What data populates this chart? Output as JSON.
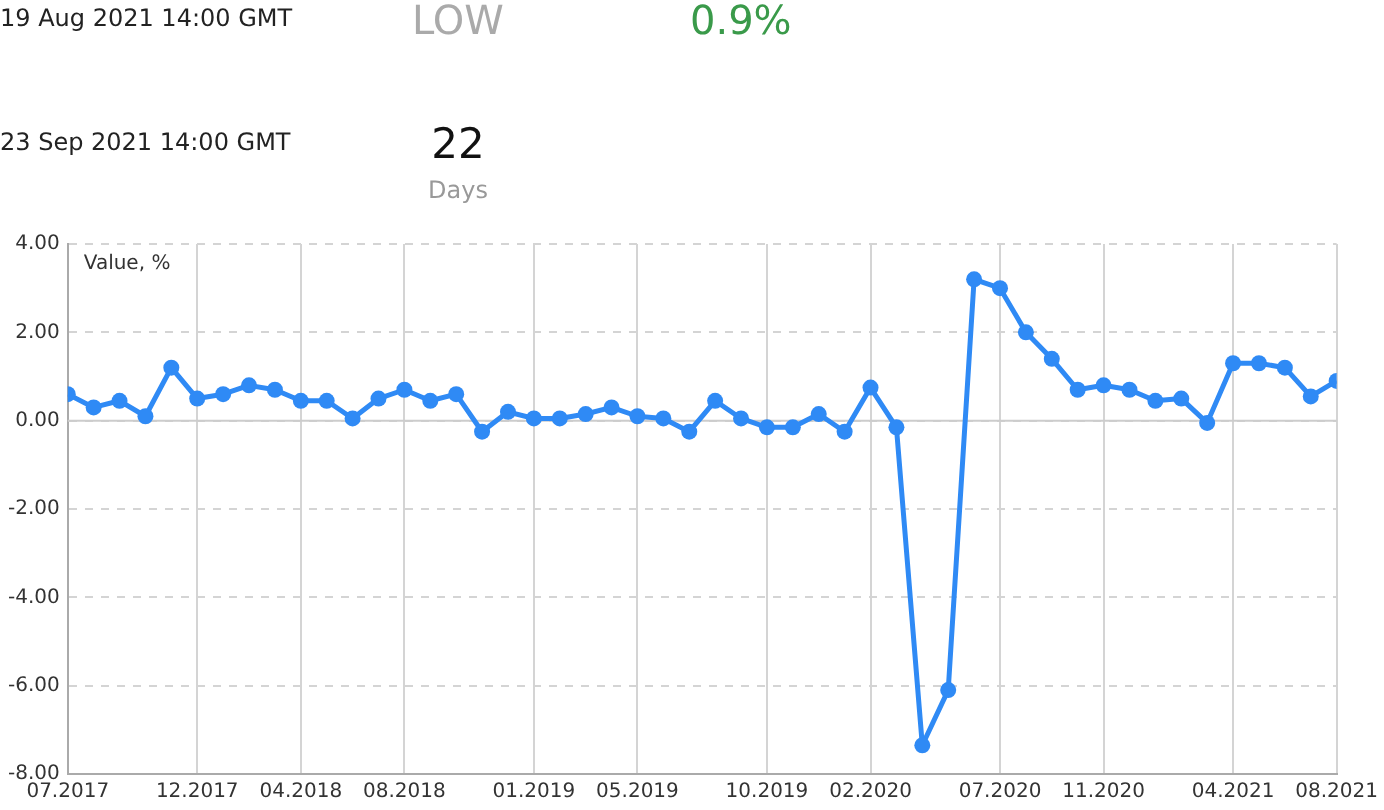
{
  "chart_data": {
    "type": "line",
    "ylabel": "Value, %",
    "annotations": [
      "19 Aug 2021 14:00 GMT",
      "LOW",
      "0.9%",
      "23 Sep 2021 14:00 GMT",
      "22",
      "Days"
    ],
    "x": [
      "2017-07",
      "2017-08",
      "2017-09",
      "2017-10",
      "2017-11",
      "2017-12",
      "2018-01",
      "2018-02",
      "2018-03",
      "2018-04",
      "2018-05",
      "2018-06",
      "2018-07",
      "2018-08",
      "2018-09",
      "2018-10",
      "2018-11",
      "2018-12",
      "2019-01",
      "2019-02",
      "2019-03",
      "2019-04",
      "2019-05",
      "2019-06",
      "2019-07",
      "2019-08",
      "2019-09",
      "2019-10",
      "2019-11",
      "2019-12",
      "2020-01",
      "2020-02",
      "2020-03",
      "2020-04",
      "2020-05",
      "2020-06",
      "2020-07",
      "2020-08",
      "2020-09",
      "2020-10",
      "2020-11",
      "2020-12",
      "2021-01",
      "2021-02",
      "2021-03",
      "2021-04",
      "2021-05",
      "2021-06",
      "2021-07",
      "2021-08"
    ],
    "series": [
      {
        "color": "#2f8af5",
        "values": [
          0.6,
          0.3,
          0.45,
          0.1,
          1.2,
          0.5,
          0.6,
          0.8,
          0.7,
          0.45,
          0.45,
          0.05,
          0.5,
          0.7,
          0.45,
          0.6,
          -0.25,
          0.2,
          0.05,
          0.05,
          0.15,
          0.3,
          0.1,
          0.05,
          -0.25,
          0.45,
          0.05,
          -0.15,
          -0.15,
          0.15,
          -0.25,
          0.75,
          -0.15,
          -7.35,
          -6.1,
          3.2,
          3.0,
          2.0,
          1.4,
          0.7,
          0.8,
          0.7,
          0.45,
          0.5,
          -0.05,
          1.3,
          1.3,
          1.2,
          0.55,
          0.9
        ]
      }
    ],
    "xlim": [
      "2017-07",
      "2021-08"
    ],
    "xticks": [
      {
        "value": "2017-07",
        "label": "07.2017"
      },
      {
        "value": "2017-12",
        "label": "12.2017"
      },
      {
        "value": "2018-04",
        "label": "04.2018"
      },
      {
        "value": "2018-08",
        "label": "08.2018"
      },
      {
        "value": "2019-01",
        "label": "01.2019"
      },
      {
        "value": "2019-05",
        "label": "05.2019"
      },
      {
        "value": "2019-10",
        "label": "10.2019"
      },
      {
        "value": "2020-02",
        "label": "02.2020"
      },
      {
        "value": "2020-07",
        "label": "07.2020"
      },
      {
        "value": "2020-11",
        "label": "11.2020"
      },
      {
        "value": "2021-04",
        "label": "04.2021"
      },
      {
        "value": "2021-08",
        "label": "08.2021"
      }
    ],
    "ref_lines": [
      {
        "axis": "y",
        "value": 0,
        "color": "#cccccc"
      }
    ],
    "ylim": [
      -8,
      4
    ],
    "yticks": [
      {
        "value": -8,
        "label": "-8.00"
      },
      {
        "value": -6,
        "label": "-6.00"
      },
      {
        "value": -4,
        "label": "-4.00"
      },
      {
        "value": -2,
        "label": "-2.00"
      },
      {
        "value": 0,
        "label": "0.00"
      },
      {
        "value": 2,
        "label": "2.00"
      },
      {
        "value": 4,
        "label": "4.00"
      }
    ],
    "grid": true,
    "legend": false,
    "marker": "circle",
    "line_style": "solid"
  }
}
